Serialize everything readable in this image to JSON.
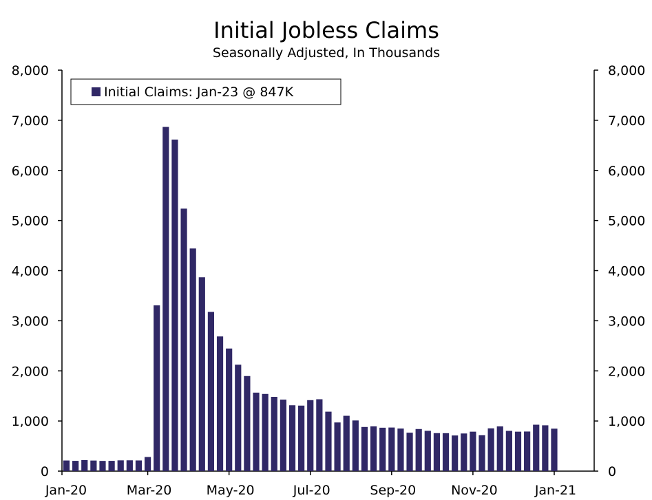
{
  "chart_data": {
    "type": "bar",
    "title": "Initial Jobless Claims",
    "subtitle": "Seasonally Adjusted, In Thousands",
    "legend": "Initial Claims: Jan-23 @ 847K",
    "legend_position": "top-left",
    "bar_color": "#302866",
    "series": [
      {
        "name": "Initial Claims",
        "values": [
          212,
          205,
          220,
          211,
          204,
          205,
          215,
          216,
          213,
          282,
          3307,
          6867,
          6615,
          5237,
          4442,
          3867,
          3176,
          2687,
          2446,
          2123,
          1897,
          1566,
          1540,
          1482,
          1427,
          1314,
          1307,
          1416,
          1434,
          1186,
          971,
          1104,
          1011,
          881,
          893,
          866,
          870,
          849,
          767,
          840,
          804,
          758,
          757,
          711,
          751,
          787,
          716,
          853,
          892,
          803,
          787,
          790,
          926,
          914,
          847
        ]
      }
    ],
    "x_ticks": [
      {
        "label": "Jan-20",
        "bar": 0
      },
      {
        "label": "Mar-20",
        "bar": 9
      },
      {
        "label": "May-20",
        "bar": 18
      },
      {
        "label": "Jul-20",
        "bar": 27
      },
      {
        "label": "Sep-20",
        "bar": 36
      },
      {
        "label": "Nov-20",
        "bar": 45
      },
      {
        "label": "Jan-21",
        "bar": 54
      }
    ],
    "y_ticks": [
      "0",
      "1,000",
      "2,000",
      "3,000",
      "4,000",
      "5,000",
      "6,000",
      "7,000",
      "8,000"
    ],
    "ylim": [
      0,
      8000
    ],
    "grid": false
  }
}
